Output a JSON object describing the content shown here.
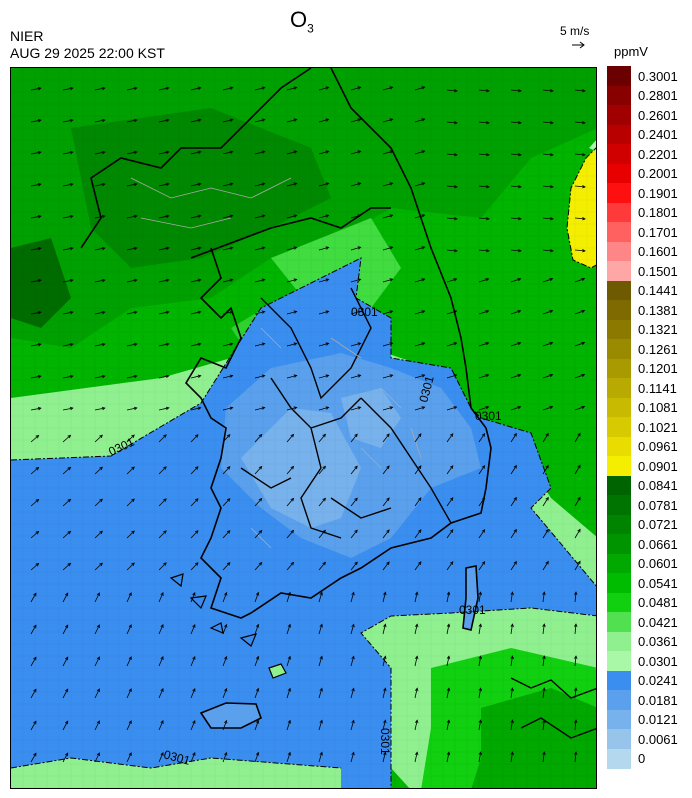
{
  "header": {
    "organization": "NIER",
    "timestamp": "AUG 29 2025 22:00 KST",
    "title_main": "O",
    "title_sub": "3",
    "wind_reference": "5 m/s",
    "unit": "ppmV"
  },
  "contour_labels": [
    "0301",
    "0301",
    "0301",
    "0301",
    "0301",
    "0301",
    "0301"
  ],
  "legend": {
    "labels": [
      "0.3001",
      "0.2801",
      "0.2601",
      "0.2401",
      "0.2201",
      "0.2001",
      "0.1901",
      "0.1801",
      "0.1701",
      "0.1601",
      "0.1501",
      "0.1441",
      "0.1381",
      "0.1321",
      "0.1261",
      "0.1201",
      "0.1141",
      "0.1081",
      "0.1021",
      "0.0961",
      "0.0901",
      "0.0841",
      "0.0781",
      "0.0721",
      "0.0661",
      "0.0601",
      "0.0541",
      "0.0481",
      "0.0421",
      "0.0361",
      "0.0301",
      "0.0241",
      "0.0181",
      "0.0121",
      "0.0061",
      "0"
    ],
    "colors": [
      "#6b0000",
      "#880000",
      "#a00000",
      "#b80000",
      "#d00000",
      "#e80000",
      "#ff1010",
      "#ff3a3a",
      "#ff6060",
      "#ff8686",
      "#ffa6a6",
      "#6e5a00",
      "#7e6a00",
      "#8c7a00",
      "#9a8a00",
      "#a89a00",
      "#b8aa00",
      "#c8ba00",
      "#d8ca00",
      "#e8dc00",
      "#f4ee00",
      "#006400",
      "#007400",
      "#008400",
      "#009400",
      "#00a800",
      "#00bc00",
      "#10d010",
      "#50e050",
      "#90f090",
      "#a8f8a8",
      "#3a8ef0",
      "#5aa0ec",
      "#78b2ec",
      "#96c4ea",
      "#b4d8ee"
    ]
  }
}
